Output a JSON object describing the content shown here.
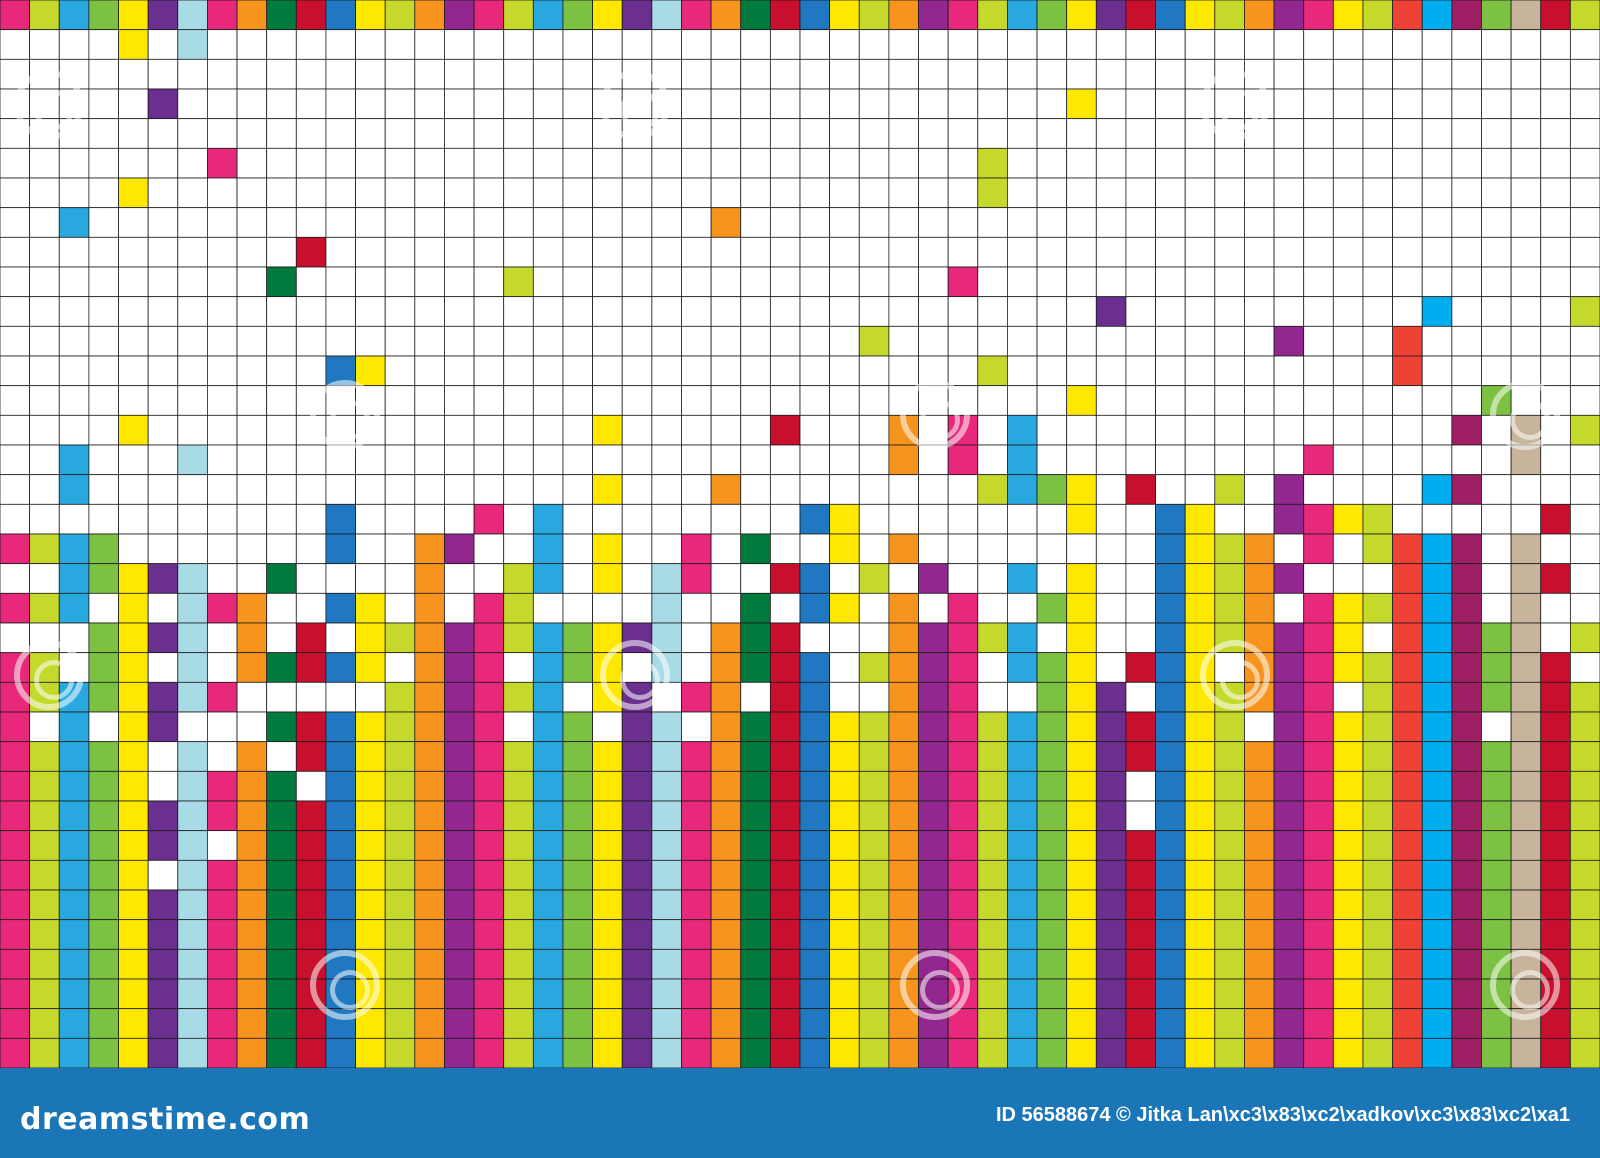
{
  "footer": {
    "brand": "dreamstime.com",
    "credit": "ID 56588674 © Jitka Lan\\xc3\\x83\\xc2\\xadkov\\xc3\\x83\\xc2\\xa1"
  },
  "palette": {
    "magenta": "#e8287a",
    "lime": "#c5d92d",
    "blue": "#29a8df",
    "green": "#7cc142",
    "yellow": "#ffe800",
    "purple": "#6b2f8f",
    "lightblue": "#a8dbe6",
    "orange": "#f7941d",
    "darkgreen": "#007a3d",
    "red": "#c8102e",
    "royal": "#1f78c1",
    "violet": "#92278f",
    "tan": "#c8b49a",
    "coral": "#ef4136",
    "plum": "#9e1f63",
    "brightblue": "#00aeef"
  },
  "watermark": "dreamstime"
}
